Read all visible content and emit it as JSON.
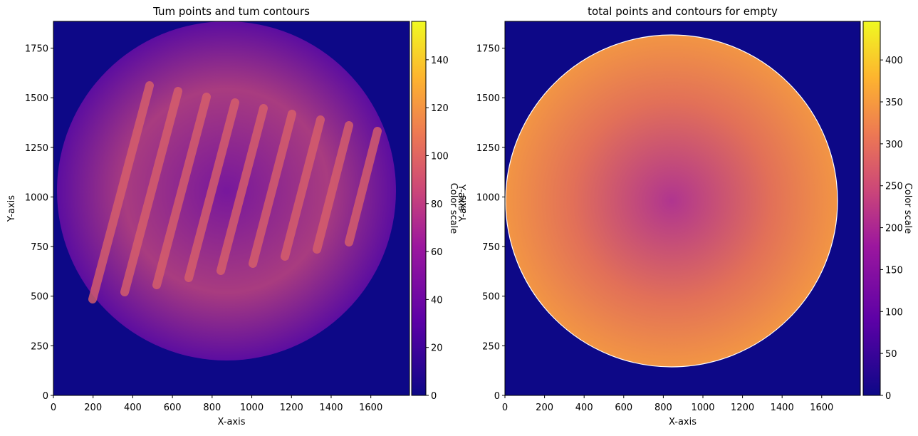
{
  "chart_data": [
    {
      "type": "image",
      "title": "Tum points and tum contours",
      "x_label": "X-axis",
      "y_label": "Y-axis",
      "xlim": [
        0,
        1795
      ],
      "ylim": [
        0,
        1885
      ],
      "xticks": [
        0,
        200,
        400,
        600,
        800,
        1000,
        1200,
        1400,
        1600
      ],
      "yticks": [
        0,
        250,
        500,
        750,
        1000,
        1250,
        1500,
        1750
      ],
      "colorbar": {
        "label": "Color scale",
        "extra_label": "Y-axis",
        "clim": [
          0,
          156
        ],
        "ticks": [
          0,
          20,
          40,
          60,
          80,
          100,
          120,
          140
        ]
      }
    },
    {
      "type": "image",
      "title": "total points and contours for empty",
      "x_label": "X-axis",
      "y_label": "Y-axis",
      "xlim": [
        0,
        1795
      ],
      "ylim": [
        0,
        1885
      ],
      "xticks": [
        0,
        200,
        400,
        600,
        800,
        1000,
        1200,
        1400,
        1600
      ],
      "yticks": [
        0,
        250,
        500,
        750,
        1000,
        1250,
        1500,
        1750
      ],
      "colorbar": {
        "label": "Color scale",
        "clim": [
          0,
          446
        ],
        "ticks": [
          0,
          50,
          100,
          150,
          200,
          250,
          300,
          350,
          400
        ]
      }
    }
  ]
}
